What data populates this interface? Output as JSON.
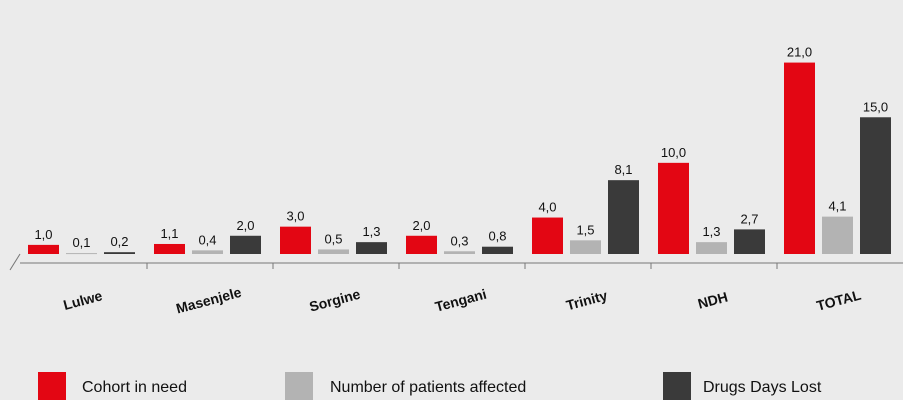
{
  "chart_data": {
    "type": "bar",
    "categories": [
      "Lulwe",
      "Masenjele",
      "Sorgine",
      "Tengani",
      "Trinity",
      "NDH",
      "TOTAL"
    ],
    "series": [
      {
        "name": "Cohort in need",
        "color": "#e30613",
        "values": [
          1.0,
          1.1,
          3.0,
          2.0,
          4.0,
          10.0,
          21.0
        ],
        "value_labels": [
          "1,0",
          "1,1",
          "3,0",
          "2,0",
          "4,0",
          "10,0",
          "21,0"
        ]
      },
      {
        "name": "Number of patients affected",
        "color": "#b3b3b3",
        "values": [
          0.1,
          0.4,
          0.5,
          0.3,
          1.5,
          1.3,
          4.1
        ],
        "value_labels": [
          "0,1",
          "0,4",
          "0,5",
          "0,3",
          "1,5",
          "1,3",
          "4,1"
        ]
      },
      {
        "name": "Drugs Days Lost",
        "color": "#3a3a3a",
        "values": [
          0.2,
          2.0,
          1.3,
          0.8,
          8.1,
          2.7,
          15.0
        ],
        "value_labels": [
          "0,2",
          "2,0",
          "1,3",
          "0,8",
          "8,1",
          "2,7",
          "15,0"
        ]
      }
    ],
    "ylim": [
      0,
      26
    ]
  }
}
